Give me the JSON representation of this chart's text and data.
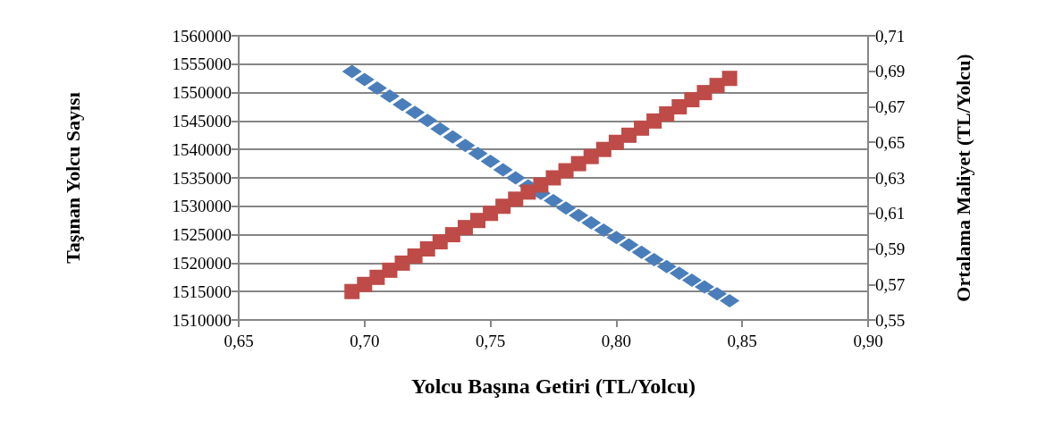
{
  "chart_data": {
    "type": "scatter",
    "xlabel": "Yolcu Başına Getiri (TL/Yolcu)",
    "ylabel": "Taşınan Yolcu Sayısı",
    "y2label": "Ortalama Maliyet (TL/Yolcu)",
    "x": [
      0.695,
      0.7,
      0.705,
      0.71,
      0.715,
      0.72,
      0.725,
      0.73,
      0.735,
      0.74,
      0.745,
      0.75,
      0.755,
      0.76,
      0.765,
      0.77,
      0.775,
      0.78,
      0.785,
      0.79,
      0.795,
      0.8,
      0.805,
      0.81,
      0.815,
      0.82,
      0.825,
      0.83,
      0.835,
      0.84,
      0.845
    ],
    "series": [
      {
        "color": "#4a7ebb",
        "marker": "diamond",
        "values": [
          1553700,
          1552300,
          1550800,
          1549400,
          1547900,
          1546500,
          1545100,
          1543600,
          1542200,
          1540700,
          1539300,
          1537900,
          1536400,
          1535000,
          1533600,
          1532300,
          1531000,
          1529700,
          1528400,
          1527100,
          1525800,
          1524500,
          1523200,
          1521900,
          1520600,
          1519400,
          1518200,
          1517000,
          1515800,
          1514600,
          1513400
        ]
      },
      {
        "color": "#be4b48",
        "marker": "square",
        "axis": "y2",
        "values": [
          0.566,
          0.57,
          0.574,
          0.578,
          0.582,
          0.586,
          0.59,
          0.594,
          0.598,
          0.602,
          0.606,
          0.61,
          0.614,
          0.618,
          0.622,
          0.626,
          0.63,
          0.634,
          0.638,
          0.642,
          0.646,
          0.65,
          0.654,
          0.658,
          0.662,
          0.666,
          0.67,
          0.674,
          0.678,
          0.682,
          0.686
        ]
      }
    ],
    "xlim": [
      0.65,
      0.9
    ],
    "xticks": [
      {
        "value": 0.65,
        "label": "0,65"
      },
      {
        "value": 0.7,
        "label": "0,70"
      },
      {
        "value": 0.75,
        "label": "0,75"
      },
      {
        "value": 0.8,
        "label": "0,80"
      },
      {
        "value": 0.85,
        "label": "0,85"
      },
      {
        "value": 0.9,
        "label": "0,90"
      }
    ],
    "ylim": [
      1510000,
      1560000
    ],
    "yticks": [
      1510000,
      1515000,
      1520000,
      1525000,
      1530000,
      1535000,
      1540000,
      1545000,
      1550000,
      1555000,
      1560000
    ],
    "y2lim": [
      0.55,
      0.71
    ],
    "y2ticks": [
      {
        "value": 0.55,
        "label": "0,55"
      },
      {
        "value": 0.57,
        "label": "0,57"
      },
      {
        "value": 0.59,
        "label": "0,59"
      },
      {
        "value": 0.61,
        "label": "0,61"
      },
      {
        "value": 0.63,
        "label": "0,63"
      },
      {
        "value": 0.65,
        "label": "0,65"
      },
      {
        "value": 0.67,
        "label": "0,67"
      },
      {
        "value": 0.69,
        "label": "0,69"
      },
      {
        "value": 0.71,
        "label": "0,71"
      }
    ],
    "grid": "y"
  }
}
